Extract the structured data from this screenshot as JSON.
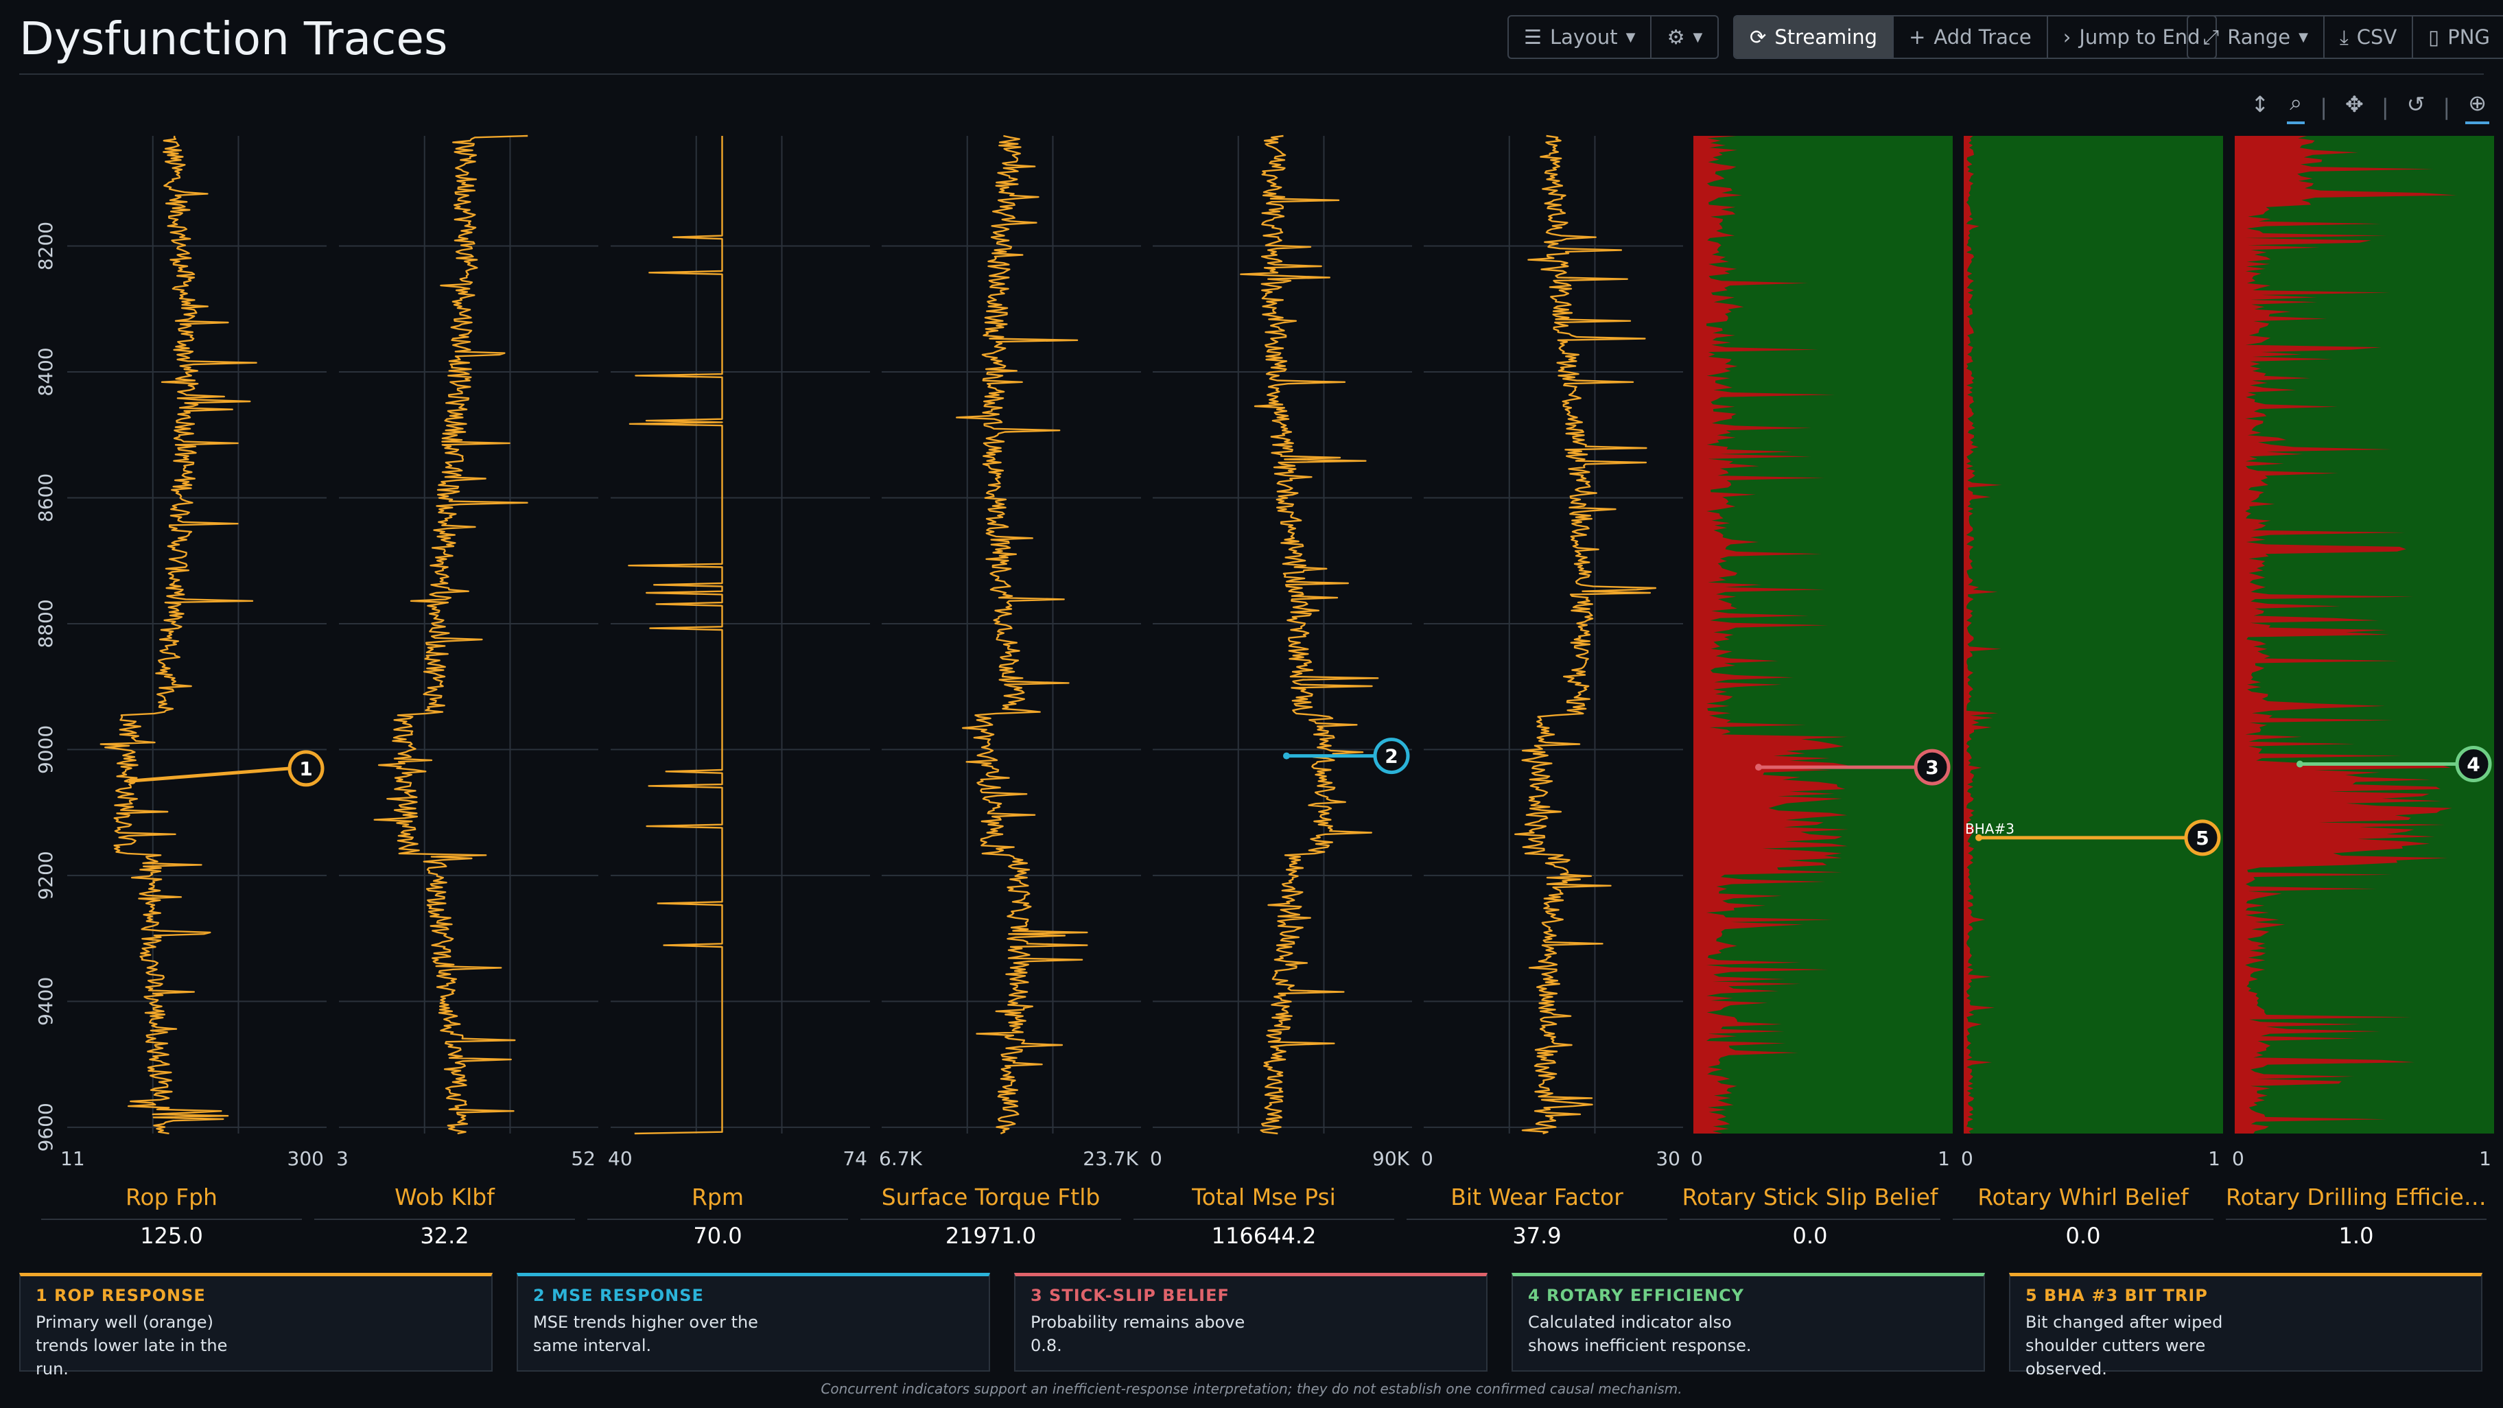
{
  "page": {
    "title": "Dysfunction Traces"
  },
  "toolbar": {
    "layout_label": "Layout",
    "settings_icon": "gear-icon",
    "streaming_label": "Streaming",
    "add_trace_label": "Add Trace",
    "jump_label": "Jump to End",
    "range_label": "Range",
    "csv_label": "CSV",
    "png_label": "PNG"
  },
  "icons": [
    "vertical-arrows-icon",
    "zoom-select-icon",
    "pan-icon",
    "reset-icon",
    "crosshair-icon"
  ],
  "colors": {
    "trace": "#f2a72a",
    "red": "#b31313",
    "green": "#0c5a12",
    "grid": "#2b323b"
  },
  "chart_data": {
    "type": "line",
    "depth_axis": {
      "ticks": [
        8200,
        8400,
        8600,
        8800,
        9000,
        9200,
        9400,
        9600
      ],
      "range": [
        8025,
        9610
      ]
    },
    "tracks": [
      {
        "name": "Rop Fph",
        "min": "11",
        "max": "300",
        "value": "125.0",
        "kind": "line"
      },
      {
        "name": "Wob Klbf",
        "min": "3",
        "max": "52",
        "value": "32.2",
        "kind": "line"
      },
      {
        "name": "Rpm",
        "min": "40",
        "max": "74",
        "value": "70.0",
        "kind": "line"
      },
      {
        "name": "Surface Torque Ftlb",
        "min": "6.7K",
        "max": "23.7K",
        "value": "21971.0",
        "kind": "line"
      },
      {
        "name": "Total Mse Psi",
        "min": "0",
        "max": "90K",
        "value": "116644.2",
        "kind": "line"
      },
      {
        "name": "Bit Wear Factor",
        "min": "0",
        "max": "30",
        "value": "37.9",
        "kind": "line"
      },
      {
        "name": "Rotary Stick Slip Belief",
        "min": "0",
        "max": "1",
        "value": "0.0",
        "kind": "belief"
      },
      {
        "name": "Rotary Whirl Belief",
        "min": "0",
        "max": "1",
        "value": "0.0",
        "kind": "belief"
      },
      {
        "name": "Rotary Drilling Efficiency",
        "min": "0",
        "max": "1",
        "value": "1.0",
        "kind": "belief"
      }
    ],
    "markers": [
      {
        "id": "1",
        "color": "#f2a72a",
        "track": 0,
        "depth": 9030
      },
      {
        "id": "2",
        "color": "#2bb3d9",
        "track": 4,
        "depth": 9010
      },
      {
        "id": "3",
        "color": "#e0636b",
        "track": 6,
        "depth": 9028
      },
      {
        "id": "4",
        "color": "#6fcf86",
        "track": 8,
        "depth": 9023
      },
      {
        "id": "5",
        "color": "#f2a72a",
        "track": 7,
        "depth": 9140,
        "label": "BHA#3"
      }
    ]
  },
  "cards": [
    {
      "num": "1",
      "title": "ROP RESPONSE",
      "color": "#f2a72a",
      "text": "Primary well (orange) trends lower late in the run."
    },
    {
      "num": "2",
      "title": "MSE RESPONSE",
      "color": "#2bb3d9",
      "text": "MSE trends higher over the same interval."
    },
    {
      "num": "3",
      "title": "STICK-SLIP BELIEF",
      "color": "#e0636b",
      "text": "Probability remains above 0.8."
    },
    {
      "num": "4",
      "title": "ROTARY EFFICIENCY",
      "color": "#6fcf86",
      "text": "Calculated indicator also shows inefficient response."
    },
    {
      "num": "5",
      "title": "BHA #3 BIT TRIP",
      "color": "#f2a72a",
      "text": "Bit changed after wiped shoulder cutters were observed."
    }
  ],
  "footnote": "Concurrent indicators support an inefficient-response interpretation; they do not establish one confirmed causal mechanism."
}
